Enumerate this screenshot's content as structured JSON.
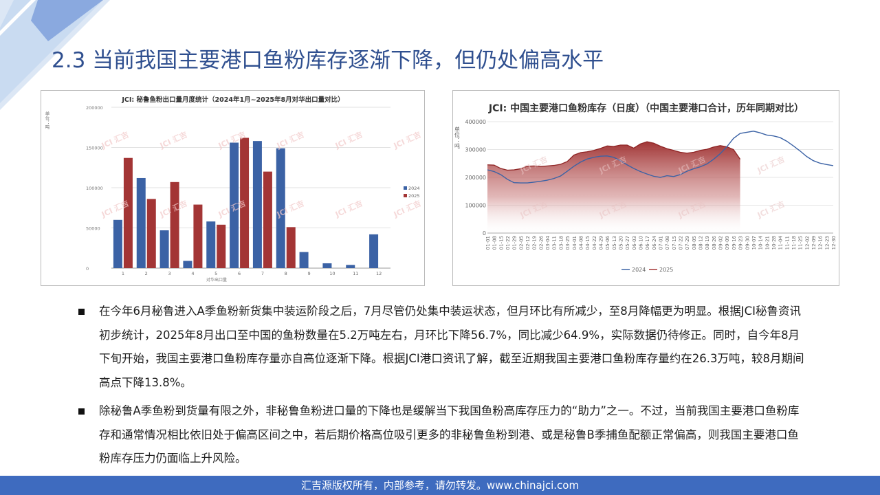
{
  "slide": {
    "title": "2.3 当前我国主要港口鱼粉库存逐渐下降，但仍处偏高水平",
    "footer": "汇吉源版权所有，内部参考，请勿转发。www.chinajci.com",
    "bullets": [
      "在今年6月秘鲁进入A季鱼粉新货集中装运阶段之后，7月尽管仍处集中装运状态，但月环比有所减少，至8月降幅更为明显。根据JCI秘鲁资讯初步统计，2025年8月出口至中国的鱼粉数量在5.2万吨左右，月环比下降56.7%，同比减少64.9%，实际数据仍待修正。同时，自今年8月下旬开始，我国主要港口鱼粉库存量亦自高位逐渐下降。根据JCI港口资讯了解，截至近期我国主要港口鱼粉库存量约在26.3万吨，较8月期间高点下降13.8%。",
      "除秘鲁A季鱼粉到货量有限之外，非秘鲁鱼粉进口量的下降也是缓解当下我国鱼粉高库存压力的“助力”之一。不过，当前我国主要港口鱼粉库存和通常情况相比依旧处于偏高区间之中，若后期价格高位吸引更多的非秘鲁鱼粉到港、或是秘鲁B季捕鱼配额正常偏高，则我国主要港口鱼粉库存压力仍面临上升风险。"
    ],
    "watermark": "汇吉"
  },
  "colors": {
    "title": "#2f4f8f",
    "footer_bg": "#3e6bbf",
    "series_2024": "#3b62a5",
    "series_2025": "#a33535",
    "deco_light": "#d6e3f3",
    "deco_dark": "#8aa9df"
  },
  "chart_data": [
    {
      "type": "bar",
      "title": "JCI: 秘鲁鱼粉出口量月度统计（2024年1月~2025年8月对华出口量对比）",
      "ylabel": "单位：吨",
      "xlabel": "对华出口量",
      "categories": [
        "1",
        "2",
        "3",
        "4",
        "5",
        "6",
        "7",
        "8",
        "9",
        "10",
        "11",
        "12"
      ],
      "ylim": [
        0,
        200000
      ],
      "yticks": [
        "0",
        "50000",
        "100000",
        "150000",
        "200000"
      ],
      "legend_position": "right",
      "series": [
        {
          "name": "2024",
          "color": "#3b62a5",
          "values": [
            60000,
            112000,
            47000,
            9000,
            58000,
            156000,
            158000,
            149000,
            20000,
            6000,
            4000,
            42000
          ]
        },
        {
          "name": "2025",
          "color": "#a33535",
          "values": [
            137000,
            86000,
            107000,
            79000,
            54000,
            162000,
            120000,
            51000,
            null,
            null,
            null,
            null
          ]
        }
      ]
    },
    {
      "type": "area",
      "title": "JCI: 中国主要港口鱼粉库存（日度）（中国主要港口合计，历年同期对比）",
      "ylabel": "单位：吨",
      "ylim": [
        0,
        400000
      ],
      "yticks": [
        "0",
        "100000",
        "200000",
        "300000",
        "400000"
      ],
      "legend_position": "bottom",
      "x_labels": [
        "01-01",
        "01-08",
        "01-15",
        "01-22",
        "01-29",
        "02-05",
        "02-12",
        "02-19",
        "02-26",
        "03-04",
        "03-11",
        "03-18",
        "03-25",
        "04-01",
        "04-08",
        "04-15",
        "04-22",
        "04-29",
        "05-06",
        "05-13",
        "05-20",
        "05-27",
        "06-03",
        "06-10",
        "06-17",
        "06-24",
        "07-01",
        "07-08",
        "07-15",
        "07-22",
        "07-29",
        "08-05",
        "08-12",
        "08-19",
        "08-26",
        "09-02",
        "09-09",
        "09-16",
        "09-23",
        "09-30",
        "10-07",
        "10-14",
        "10-21",
        "10-28",
        "11-04",
        "11-11",
        "11-18",
        "11-25",
        "12-02",
        "12-09",
        "12-16",
        "12-23",
        "12-30"
      ],
      "series": [
        {
          "name": "2024",
          "color": "#3b62a5",
          "style": "line",
          "values": [
            227000,
            221000,
            210000,
            193000,
            181000,
            180000,
            180000,
            183000,
            186000,
            190000,
            196000,
            205000,
            222000,
            240000,
            255000,
            266000,
            272000,
            276000,
            277000,
            272000,
            260000,
            245000,
            232000,
            221000,
            212000,
            204000,
            200000,
            206000,
            203000,
            210000,
            222000,
            231000,
            238000,
            248000,
            265000,
            285000,
            310000,
            340000,
            358000,
            362000,
            366000,
            360000,
            352000,
            349000,
            343000,
            330000,
            313000,
            295000,
            275000,
            260000,
            251000,
            246000,
            242000
          ]
        },
        {
          "name": "2025",
          "color": "#a33535",
          "style": "area",
          "values": [
            245000,
            244000,
            232000,
            226000,
            227000,
            231000,
            240000,
            241000,
            239000,
            241000,
            243000,
            247000,
            257000,
            280000,
            289000,
            292000,
            297000,
            304000,
            313000,
            311000,
            316000,
            316000,
            305000,
            320000,
            328000,
            323000,
            312000,
            303000,
            297000,
            290000,
            287000,
            290000,
            297000,
            301000,
            309000,
            314000,
            310000,
            300000,
            265000
          ]
        }
      ]
    }
  ]
}
